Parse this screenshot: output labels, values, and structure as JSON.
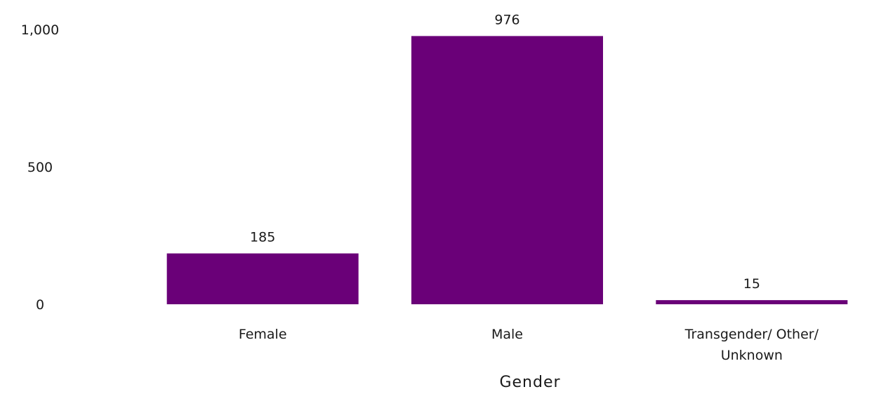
{
  "chart_data": {
    "type": "bar",
    "categories": [
      [
        "Female"
      ],
      [
        "Male"
      ],
      [
        "Transgender/ Other/",
        "Unknown"
      ]
    ],
    "values": [
      185,
      976,
      15
    ],
    "data_labels": [
      "185",
      "976",
      "15"
    ],
    "xlabel": "Gender",
    "ylabel": "",
    "ylim": [
      0,
      1000
    ],
    "yticks": [
      0,
      500,
      1000
    ],
    "ytick_labels": [
      "0",
      "500",
      "1,000"
    ],
    "grid": false,
    "legend": "none",
    "bar_color": "#6a0078"
  }
}
